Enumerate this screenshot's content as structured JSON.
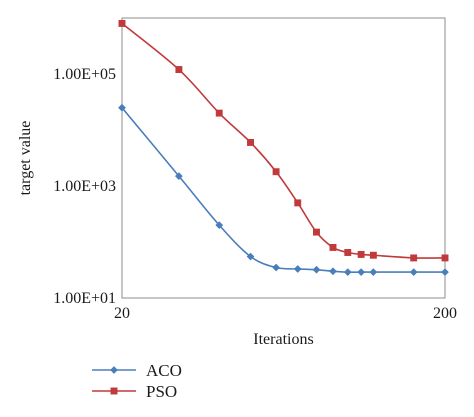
{
  "chart_data": {
    "type": "line",
    "xlabel": "Iterations",
    "ylabel": "target value",
    "x_tick_labels": [
      "20",
      "200"
    ],
    "y_tick_labels": [
      "1.00E+01",
      "1.00E+03",
      "1.00E+05"
    ],
    "y_scale": "log",
    "xlim": [
      20,
      200
    ],
    "ylim": [
      10,
      1000000
    ],
    "grid": false,
    "legend_position": "bottom-left",
    "series": [
      {
        "name": "ACO",
        "color": "#4a7ebb",
        "marker": "diamond",
        "x": [
          20,
          30,
          40,
          50,
          60,
          70,
          80,
          90,
          100,
          110,
          120,
          160,
          200
        ],
        "y": [
          25000,
          1500,
          200,
          55,
          35,
          33,
          32,
          30,
          29,
          29,
          29,
          29,
          29
        ]
      },
      {
        "name": "PSO",
        "color": "#c0393b",
        "marker": "square",
        "x": [
          20,
          30,
          40,
          50,
          60,
          70,
          80,
          90,
          100,
          110,
          120,
          160,
          200
        ],
        "y": [
          800000,
          120000,
          20000,
          6000,
          1800,
          500,
          150,
          80,
          65,
          60,
          58,
          52,
          52
        ]
      }
    ]
  }
}
